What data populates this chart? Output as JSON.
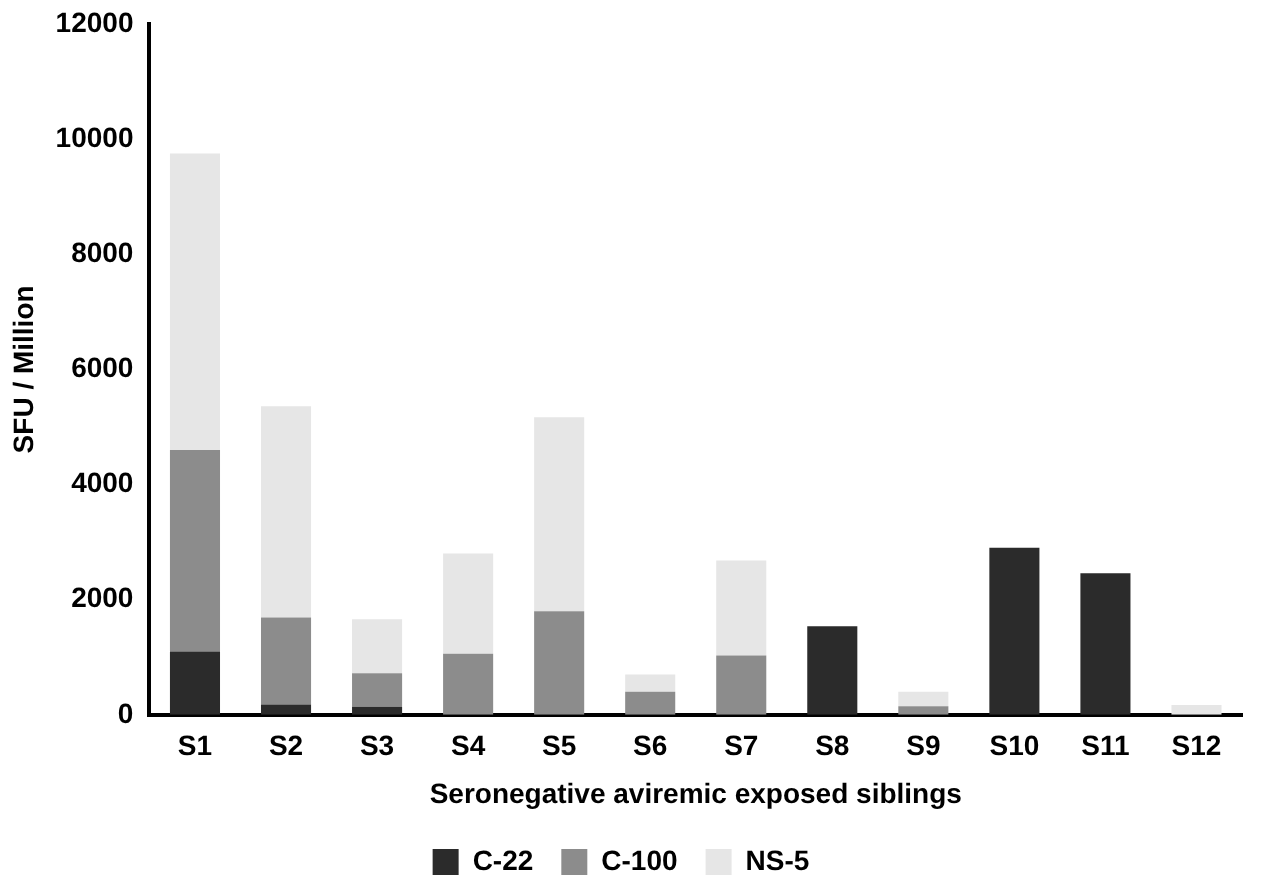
{
  "chart_data": {
    "type": "bar",
    "stacked": true,
    "xlabel": "Seronegative aviremic exposed siblings",
    "ylabel": "SFU / Million",
    "categories": [
      "S1",
      "S2",
      "S3",
      "S4",
      "S5",
      "S6",
      "S7",
      "S8",
      "S9",
      "S10",
      "S11",
      "S12"
    ],
    "series": [
      {
        "name": "C-22",
        "color": "#2b2b2b",
        "values": [
          1100,
          180,
          140,
          0,
          null,
          0,
          null,
          1540,
          0,
          2900,
          2460,
          0
        ]
      },
      {
        "name": "C-100",
        "color": "#8c8c8c",
        "values": [
          3500,
          1510,
          580,
          1060,
          1800,
          400,
          1030,
          0,
          150,
          0,
          0,
          0
        ]
      },
      {
        "name": "NS-5",
        "color": "#e6e6e6",
        "values": [
          5150,
          3670,
          940,
          1740,
          3370,
          300,
          1650,
          0,
          250,
          0,
          0,
          170
        ]
      }
    ],
    "ylim": [
      0,
      12000
    ],
    "yticks": [
      0,
      2000,
      4000,
      6000,
      8000,
      10000,
      12000
    ],
    "grid": false,
    "legend": "bottom"
  }
}
